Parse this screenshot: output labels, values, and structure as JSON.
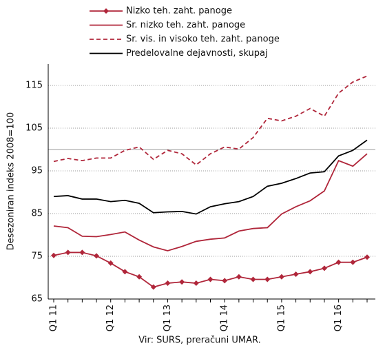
{
  "chart_data": {
    "type": "line",
    "y_label": "Desezoniran indeks  2008=100",
    "source": "Vir: SURS, preračuni UMAR.",
    "categories": [
      "Q1 11",
      null,
      null,
      null,
      "Q1 12",
      null,
      null,
      null,
      "Q1 13",
      null,
      null,
      null,
      "Q1 14",
      null,
      null,
      null,
      "Q1 15",
      null,
      null,
      null,
      "Q1 16",
      null,
      null
    ],
    "series": [
      {
        "name": "Nizko teh. zaht. panoge",
        "color": "#b0263a",
        "marker": "diamond",
        "dashed": false,
        "values": [
          75.2,
          75.9,
          75.9,
          75.1,
          73.4,
          71.4,
          70.2,
          67.8,
          68.7,
          69.0,
          68.7,
          69.6,
          69.3,
          70.2,
          69.6,
          69.6,
          70.2,
          70.8,
          71.4,
          72.2,
          73.6,
          73.6,
          74.8
        ]
      },
      {
        "name": "Sr. nizko teh. zaht. panoge",
        "color": "#b0263a",
        "marker": null,
        "dashed": false,
        "values": [
          82.1,
          81.7,
          79.7,
          79.6,
          80.1,
          80.7,
          78.8,
          77.2,
          76.3,
          77.3,
          78.5,
          79.0,
          79.3,
          80.9,
          81.5,
          81.7,
          84.9,
          86.6,
          88.0,
          90.3,
          97.4,
          96.1,
          99.0
        ]
      },
      {
        "name": "Sr. vis. in visoko teh. zaht. panoge",
        "color": "#b0263a",
        "marker": null,
        "dashed": true,
        "values": [
          97.2,
          97.9,
          97.4,
          98.0,
          98.0,
          99.8,
          100.6,
          97.7,
          99.8,
          99.0,
          96.4,
          99.0,
          100.6,
          100.1,
          102.8,
          107.3,
          106.7,
          107.8,
          109.6,
          107.8,
          113.2,
          115.8,
          117.2
        ]
      },
      {
        "name": "Predelovalne dejavnosti, skupaj",
        "color": "#000000",
        "marker": null,
        "dashed": false,
        "values": [
          89.0,
          89.2,
          88.4,
          88.4,
          87.8,
          88.1,
          87.4,
          85.2,
          85.4,
          85.5,
          84.9,
          86.6,
          87.3,
          87.8,
          89.0,
          91.4,
          92.1,
          93.2,
          94.5,
          94.8,
          98.5,
          99.8,
          102.2
        ]
      }
    ],
    "ylim": [
      65,
      120
    ],
    "yticks": [
      65,
      75,
      85,
      95,
      105,
      115
    ],
    "grid": true,
    "reference_line": 100
  }
}
